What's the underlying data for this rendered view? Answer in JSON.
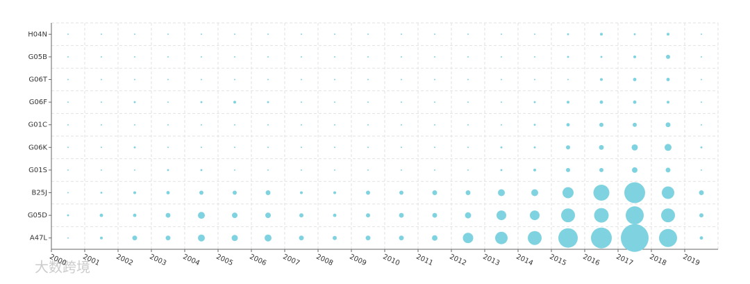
{
  "chart_data": {
    "type": "bubble",
    "x": [
      "2000",
      "2001",
      "2002",
      "2003",
      "2004",
      "2005",
      "2006",
      "2007",
      "2008",
      "2009",
      "2010",
      "2011",
      "2012",
      "2013",
      "2014",
      "2015",
      "2016",
      "2017",
      "2018",
      "2019"
    ],
    "y": [
      "H04N",
      "G05B",
      "G06T",
      "G06F",
      "G01C",
      "G06K",
      "G01S",
      "B25J",
      "G05D",
      "A47L"
    ],
    "values": [
      [
        1,
        1,
        1,
        1,
        1,
        1,
        1,
        1,
        1,
        1,
        1,
        1,
        1,
        1,
        1,
        2,
        4,
        2,
        4,
        1
      ],
      [
        1,
        1,
        1,
        1,
        1,
        1,
        1,
        1,
        1,
        1,
        1,
        1,
        1,
        1,
        1,
        2,
        2,
        4,
        9,
        1
      ],
      [
        1,
        1,
        1,
        1,
        1,
        1,
        1,
        1,
        1,
        1,
        1,
        1,
        1,
        1,
        1,
        1,
        4,
        6,
        6,
        1
      ],
      [
        1,
        1,
        2,
        1,
        2,
        4,
        2,
        1,
        1,
        1,
        1,
        1,
        1,
        1,
        2,
        4,
        6,
        6,
        4,
        1
      ],
      [
        1,
        1,
        1,
        1,
        1,
        1,
        1,
        1,
        1,
        1,
        1,
        1,
        1,
        1,
        2,
        6,
        9,
        9,
        12,
        1
      ],
      [
        1,
        1,
        2,
        1,
        1,
        1,
        1,
        1,
        1,
        1,
        1,
        1,
        1,
        2,
        2,
        9,
        12,
        20,
        25,
        2
      ],
      [
        1,
        1,
        1,
        2,
        2,
        1,
        1,
        1,
        1,
        1,
        1,
        1,
        1,
        2,
        4,
        9,
        9,
        16,
        12,
        1
      ],
      [
        1,
        2,
        4,
        6,
        9,
        9,
        12,
        4,
        4,
        9,
        9,
        12,
        12,
        25,
        25,
        64,
        132,
        225,
        81,
        12
      ],
      [
        2,
        6,
        6,
        12,
        25,
        16,
        16,
        9,
        6,
        9,
        12,
        12,
        20,
        49,
        49,
        100,
        110,
        169,
        100,
        9
      ],
      [
        1,
        4,
        12,
        12,
        25,
        20,
        25,
        12,
        9,
        12,
        12,
        16,
        56,
        81,
        100,
        196,
        225,
        400,
        169,
        6
      ]
    ],
    "color": "#7fd3e0",
    "grid": true,
    "watermark": "大数跨境"
  }
}
